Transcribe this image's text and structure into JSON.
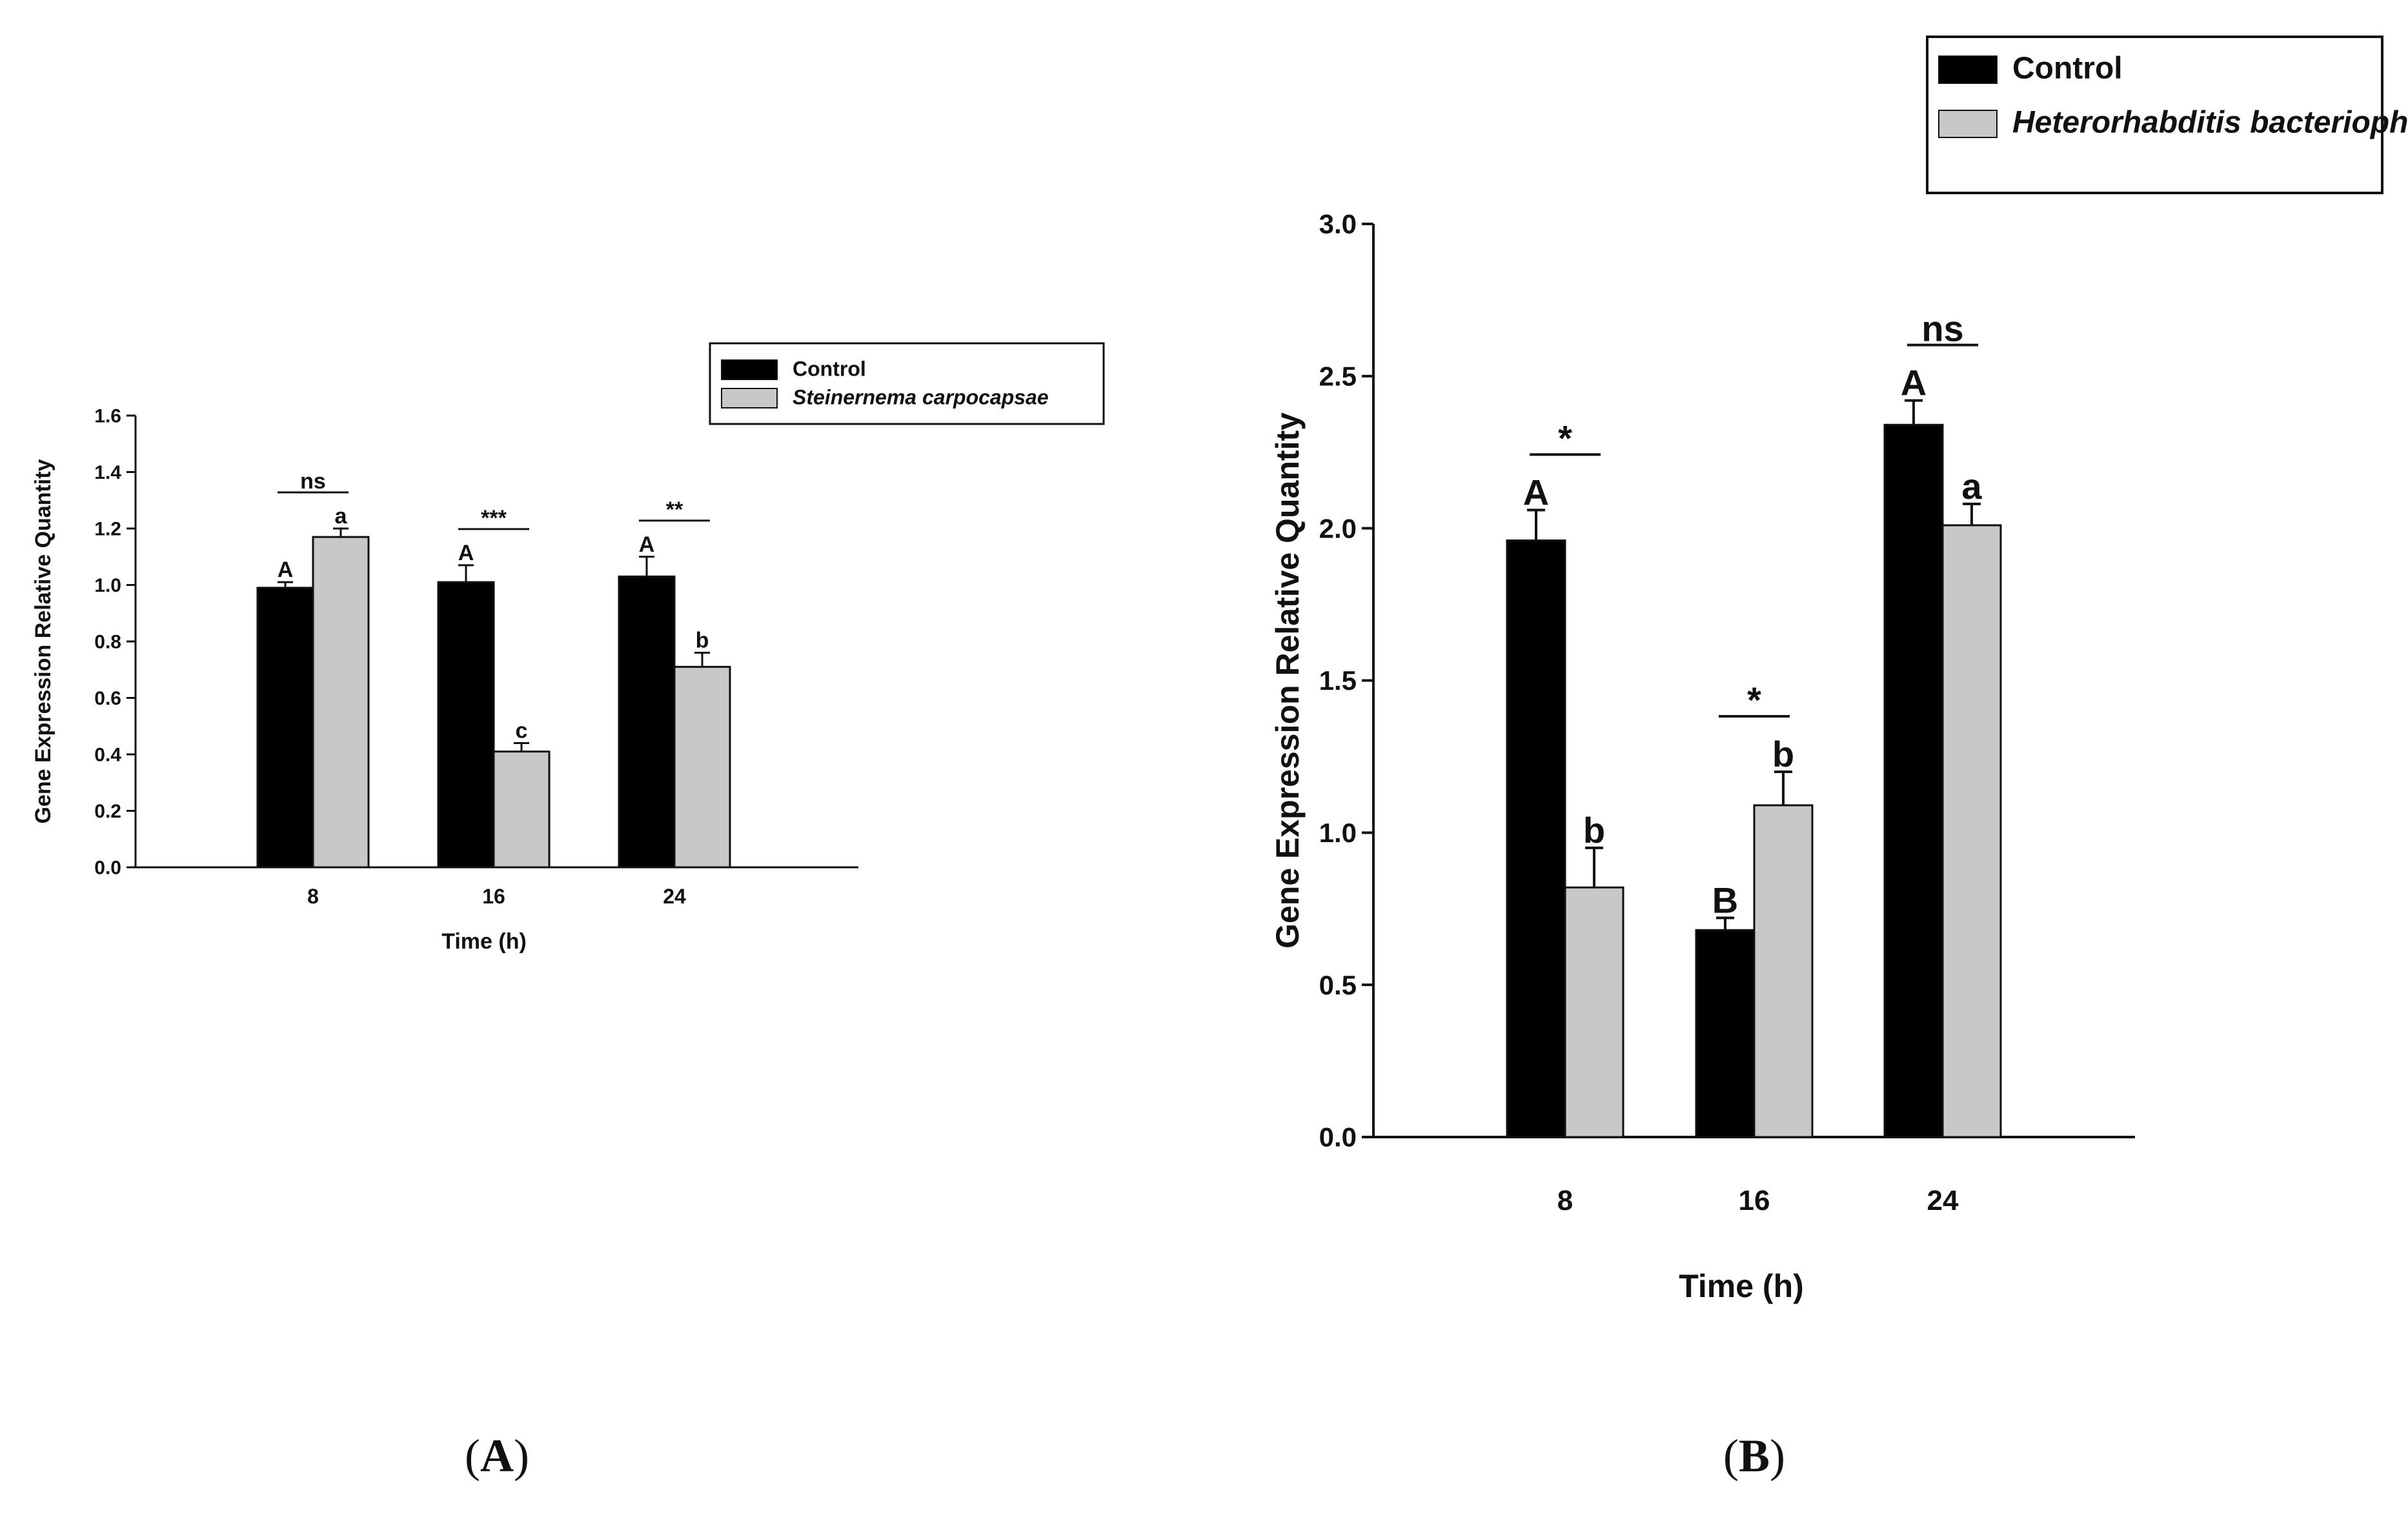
{
  "chart_data": [
    {
      "type": "bar",
      "panel_label": "(A)",
      "panel_letter": "A",
      "categories": [
        "8",
        "16",
        "24"
      ],
      "series": [
        {
          "name": "Control",
          "color": "#000000",
          "values": [
            0.99,
            1.01,
            1.03
          ],
          "errors": [
            0.02,
            0.06,
            0.07
          ],
          "letters": [
            "A",
            "A",
            "A"
          ]
        },
        {
          "name": "Steinernema carpocapsae",
          "italic": true,
          "color": "#c8c8c8",
          "values": [
            1.17,
            0.41,
            0.71
          ],
          "errors": [
            0.03,
            0.03,
            0.05
          ],
          "letters": [
            "a",
            "c",
            "b"
          ]
        }
      ],
      "significance": [
        "ns",
        "***",
        "**"
      ],
      "xlabel": "Time (h)",
      "ylabel": "Gene Expression Relative Quantity",
      "ylim": [
        0,
        1.6
      ],
      "yticks": [
        "0.0",
        "0.2",
        "0.4",
        "0.6",
        "0.8",
        "1.0",
        "1.2",
        "1.4",
        "1.6"
      ],
      "legend_position": "top-right"
    },
    {
      "type": "bar",
      "panel_label": "(B)",
      "panel_letter": "B",
      "categories": [
        "8",
        "16",
        "24"
      ],
      "series": [
        {
          "name": "Control",
          "color": "#000000",
          "values": [
            1.96,
            0.68,
            2.34
          ],
          "errors": [
            0.1,
            0.04,
            0.08
          ],
          "letters": [
            "A",
            "B",
            "A"
          ]
        },
        {
          "name": "Heterorhabditis bacteriophora",
          "italic": true,
          "color": "#c8c8c8",
          "values": [
            0.82,
            1.09,
            2.01
          ],
          "errors": [
            0.13,
            0.11,
            0.07
          ],
          "letters": [
            "b",
            "b",
            "a"
          ]
        }
      ],
      "significance": [
        "*",
        "*",
        "ns"
      ],
      "xlabel": "Time (h)",
      "ylabel": "Gene Expression Relative Quantity",
      "ylim": [
        0,
        3.0
      ],
      "yticks": [
        "0.0",
        "0.5",
        "1.0",
        "1.5",
        "2.0",
        "2.5",
        "3.0"
      ],
      "legend_position": "top-right"
    }
  ]
}
